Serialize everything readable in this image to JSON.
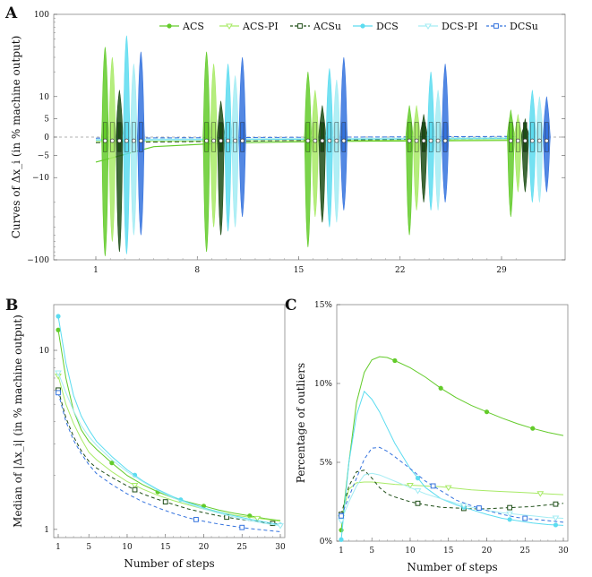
{
  "panels": {
    "a": "A",
    "b": "B",
    "c": "C"
  },
  "colors": {
    "ACS": "#63cb2a",
    "ACS-PI": "#a8ea66",
    "ACSu": "#1d4d16",
    "DCS": "#5cdcf0",
    "DCS-PI": "#a3ecf3",
    "DCSu": "#3573de"
  },
  "chart_data": [
    {
      "type": "violin",
      "title": "",
      "xlabel": "",
      "ylabel": "Curves of Δx_i (in % machine output)",
      "yscale": "symlog",
      "yticks": [
        "100",
        "10",
        "5",
        "0",
        "−5",
        "−10",
        "−100"
      ],
      "xticks": [
        "1",
        "8",
        "15",
        "22",
        "29"
      ],
      "legend": [
        "ACS",
        "ACS-PI",
        "ACSu",
        "DCS",
        "DCS-PI",
        "DCSu"
      ],
      "legend_position": "top-right",
      "step_groups": [
        3,
        10,
        17,
        24,
        31
      ],
      "violins": [
        {
          "series": "ACS",
          "max": [
            40,
            35,
            20,
            8,
            7
          ],
          "min": [
            -90,
            -80,
            -70,
            -50,
            -30
          ]
        },
        {
          "series": "ACS-PI",
          "max": [
            30,
            25,
            12,
            8,
            6
          ],
          "min": [
            -60,
            -40,
            -30,
            -25,
            -15
          ]
        },
        {
          "series": "ACSu",
          "max": [
            12,
            9,
            8,
            6,
            5
          ],
          "min": [
            -80,
            -50,
            -35,
            -20,
            -15
          ]
        },
        {
          "series": "DCS",
          "max": [
            55,
            25,
            22,
            20,
            12
          ],
          "min": [
            -85,
            -45,
            -40,
            -25,
            -20
          ]
        },
        {
          "series": "DCS-PI",
          "max": [
            25,
            18,
            16,
            12,
            10
          ],
          "min": [
            -50,
            -40,
            -35,
            -25,
            -20
          ]
        },
        {
          "series": "DCSu",
          "max": [
            35,
            30,
            30,
            25,
            10
          ],
          "min": [
            -50,
            -30,
            -25,
            -20,
            -15
          ]
        }
      ],
      "medians": [
        {
          "series": "ACS",
          "x": [
            1,
            5,
            10,
            15,
            20,
            25,
            30
          ],
          "y": [
            -6.5,
            -2.6,
            -1.6,
            -1.3,
            -1.1,
            -1.0,
            -0.9
          ]
        },
        {
          "series": "ACS-PI",
          "x": [
            1,
            30
          ],
          "y": [
            -1.2,
            -0.7
          ]
        },
        {
          "series": "ACSu",
          "x": [
            1,
            30
          ],
          "y": [
            -1.5,
            -0.3
          ]
        },
        {
          "series": "DCS",
          "x": [
            1,
            30
          ],
          "y": [
            -0.8,
            -0.4
          ]
        },
        {
          "series": "DCS-PI",
          "x": [
            1,
            30
          ],
          "y": [
            -0.6,
            -0.2
          ]
        },
        {
          "series": "DCSu",
          "x": [
            1,
            30
          ],
          "y": [
            -0.3,
            0.2
          ]
        }
      ]
    },
    {
      "type": "line",
      "title": "",
      "xlabel": "Number of steps",
      "ylabel": "Median of |Δx_i| (in % machine output)",
      "yscale": "log",
      "ylim": [
        0.9,
        18
      ],
      "yticks": [
        "10",
        "1"
      ],
      "xticks": [
        "1",
        "5",
        "10",
        "15",
        "20",
        "25",
        "30"
      ],
      "x": [
        1,
        2,
        3,
        4,
        5,
        6,
        8,
        10,
        12,
        14,
        16,
        18,
        20,
        22,
        24,
        26,
        28,
        30
      ],
      "series": [
        {
          "name": "ACS",
          "marker": "circle",
          "markers_at": [
            1,
            8,
            14,
            20,
            26
          ],
          "values": [
            13,
            7.0,
            4.6,
            3.6,
            3.1,
            2.8,
            2.35,
            2.0,
            1.78,
            1.62,
            1.5,
            1.42,
            1.35,
            1.28,
            1.23,
            1.19,
            1.15,
            1.12
          ]
        },
        {
          "name": "ACS-PI",
          "marker": "triangle",
          "markers_at": [
            1,
            11,
            27
          ],
          "values": [
            7.2,
            5.0,
            3.9,
            3.2,
            2.7,
            2.45,
            2.1,
            1.85,
            1.68,
            1.55,
            1.45,
            1.37,
            1.3,
            1.25,
            1.2,
            1.17,
            1.14,
            1.11
          ]
        },
        {
          "name": "ACSu",
          "marker": "square",
          "markers_at": [
            1,
            11,
            15,
            23,
            29
          ],
          "values": [
            6.0,
            4.2,
            3.3,
            2.75,
            2.4,
            2.2,
            1.95,
            1.75,
            1.58,
            1.47,
            1.38,
            1.3,
            1.24,
            1.19,
            1.15,
            1.12,
            1.09,
            1.07
          ]
        },
        {
          "name": "DCS",
          "marker": "circle",
          "markers_at": [
            1,
            11,
            17,
            30
          ],
          "values": [
            15.5,
            8.5,
            5.6,
            4.3,
            3.6,
            3.1,
            2.55,
            2.15,
            1.87,
            1.67,
            1.52,
            1.41,
            1.32,
            1.25,
            1.19,
            1.14,
            1.1,
            1.06
          ]
        },
        {
          "name": "DCS-PI",
          "marker": "triangle",
          "markers_at": [
            1,
            30
          ],
          "values": [
            7.5,
            5.8,
            4.6,
            3.8,
            3.3,
            2.95,
            2.45,
            2.1,
            1.85,
            1.65,
            1.5,
            1.39,
            1.3,
            1.23,
            1.17,
            1.12,
            1.08,
            1.05
          ]
        },
        {
          "name": "DCSu",
          "marker": "square",
          "markers_at": [
            1,
            19,
            25
          ],
          "values": [
            5.8,
            4.0,
            3.15,
            2.65,
            2.3,
            2.05,
            1.78,
            1.58,
            1.43,
            1.32,
            1.23,
            1.16,
            1.11,
            1.07,
            1.04,
            1.01,
            0.99,
            0.97
          ]
        }
      ]
    },
    {
      "type": "line",
      "title": "",
      "xlabel": "Number of steps",
      "ylabel": "Percentage of outliers",
      "ylim": [
        0,
        15
      ],
      "yticks": [
        "0%",
        "5%",
        "10%",
        "15%"
      ],
      "xticks": [
        "1",
        "5",
        "10",
        "15",
        "20",
        "25",
        "30"
      ],
      "x": [
        1,
        2,
        3,
        4,
        5,
        6,
        7,
        8,
        10,
        12,
        14,
        16,
        18,
        20,
        22,
        24,
        26,
        28,
        30
      ],
      "series": [
        {
          "name": "ACS",
          "marker": "circle",
          "markers_at": [
            1,
            8,
            14,
            20,
            26
          ],
          "values": [
            0.7,
            5.0,
            8.8,
            10.7,
            11.5,
            11.7,
            11.65,
            11.45,
            11.0,
            10.4,
            9.7,
            9.1,
            8.6,
            8.2,
            7.8,
            7.45,
            7.15,
            6.9,
            6.7
          ]
        },
        {
          "name": "ACS-PI",
          "marker": "triangle",
          "markers_at": [
            1,
            10,
            15,
            27
          ],
          "values": [
            1.5,
            3.3,
            3.7,
            3.75,
            3.75,
            3.7,
            3.65,
            3.6,
            3.55,
            3.5,
            3.45,
            3.35,
            3.25,
            3.2,
            3.15,
            3.1,
            3.05,
            3.0,
            2.95
          ]
        },
        {
          "name": "ACSu",
          "marker": "square",
          "markers_at": [
            1,
            11,
            17,
            23,
            29
          ],
          "values": [
            1.7,
            3.5,
            4.4,
            4.5,
            4.0,
            3.4,
            3.0,
            2.8,
            2.5,
            2.3,
            2.15,
            2.1,
            2.05,
            2.05,
            2.1,
            2.15,
            2.2,
            2.3,
            2.4
          ]
        },
        {
          "name": "DCS",
          "marker": "circle",
          "markers_at": [
            1,
            11,
            17,
            23,
            29
          ],
          "values": [
            0.1,
            5.0,
            8.0,
            9.5,
            9.0,
            8.2,
            7.2,
            6.2,
            4.6,
            3.4,
            2.7,
            2.3,
            2.0,
            1.7,
            1.45,
            1.3,
            1.15,
            1.05,
            1.0
          ]
        },
        {
          "name": "DCS-PI",
          "marker": "triangle",
          "markers_at": [
            1,
            11,
            17,
            23,
            29
          ],
          "values": [
            1.3,
            2.5,
            3.5,
            4.2,
            4.3,
            4.2,
            4.0,
            3.8,
            3.4,
            3.0,
            2.7,
            2.4,
            2.15,
            1.95,
            1.8,
            1.7,
            1.6,
            1.5,
            1.45
          ]
        },
        {
          "name": "DCSu",
          "marker": "square",
          "markers_at": [
            1,
            13,
            19,
            25
          ],
          "values": [
            1.6,
            2.8,
            4.0,
            5.2,
            5.9,
            5.95,
            5.7,
            5.35,
            4.6,
            3.8,
            3.2,
            2.6,
            2.25,
            1.95,
            1.7,
            1.5,
            1.4,
            1.3,
            1.2
          ]
        }
      ]
    }
  ]
}
